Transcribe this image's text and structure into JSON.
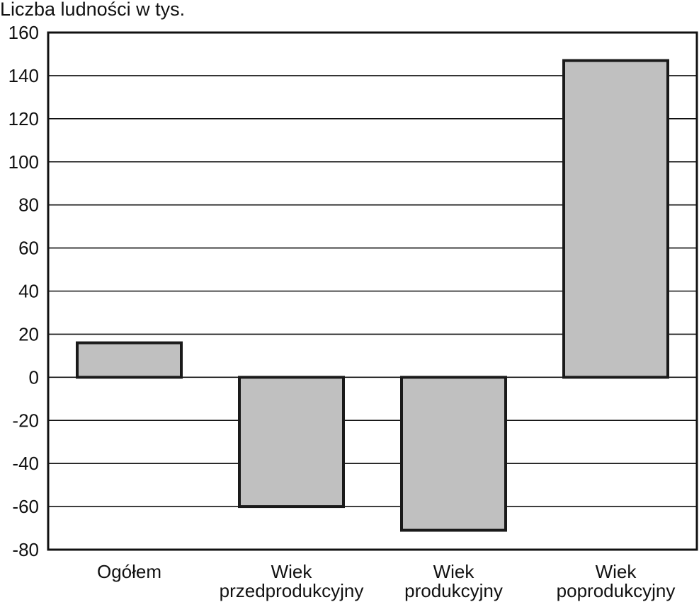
{
  "chart_data": {
    "type": "bar",
    "ylabel": "Liczba ludności w tys.",
    "categories": [
      [
        "Ogółem"
      ],
      [
        "Wiek",
        "przedprodukcyjny"
      ],
      [
        "Wiek",
        "produkcyjny"
      ],
      [
        "Wiek",
        "poprodukcyjny"
      ]
    ],
    "values": [
      16,
      -60,
      -71,
      147
    ],
    "ylim": [
      -80,
      160
    ],
    "yticks": [
      160,
      140,
      120,
      100,
      80,
      60,
      40,
      20,
      0,
      -20,
      -40,
      -60,
      -80
    ],
    "grid": true,
    "bar_color": "#c0c0c0",
    "bar_edge_color": "#1a1a1a"
  }
}
